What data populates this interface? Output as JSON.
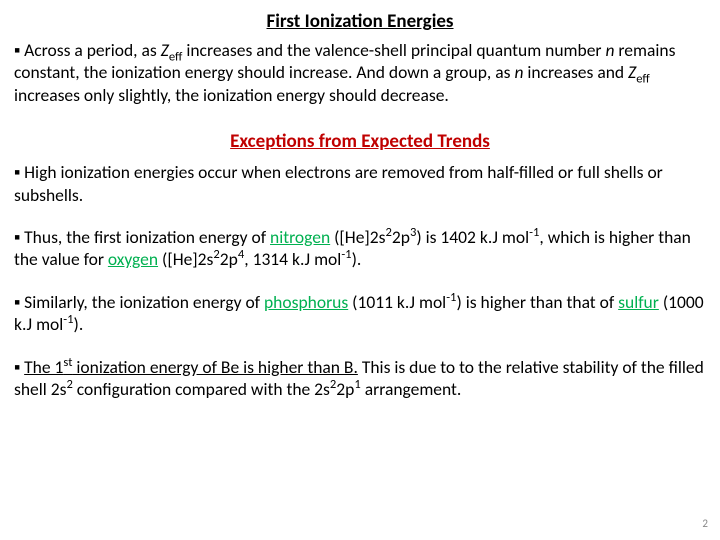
{
  "title": "First Ionization Energies",
  "para1_a": "Across a period, as ",
  "para1_z": "Z",
  "para1_eff": "eff",
  "para1_b": " increases and the valence-shell principal quantum number ",
  "para1_n1": "n",
  "para1_c": " remains constant, the ionization energy should increase. And down a group, as ",
  "para1_n2": "n",
  "para1_d": " increases and ",
  "para1_z2": "Z",
  "para1_eff2": "eff",
  "para1_e": " increases only slightly, the ionization energy should decrease.",
  "subtitle": "Exceptions from Expected Trends",
  "para2": "High ionization energies occur when electrons are removed from half-filled or full shells or subshells.",
  "p3_a": "Thus, the first ionization energy of ",
  "p3_nitrogen": "nitrogen",
  "p3_b": " ([He]2s",
  "p3_c": "2p",
  "p3_d": ") is 1402 k.J mol",
  "p3_e": ", which is higher than the value for ",
  "p3_oxygen": "oxygen",
  "p3_f": " ([He]2s",
  "p3_g": "2p",
  "p3_h": ", 1314 k.J mol",
  "p3_i": ").",
  "p4_a": "Similarly, the ionization energy of ",
  "p4_phos": "phosphorus",
  "p4_b": " (1011 k.J mol",
  "p4_c": ") is higher than that of ",
  "p4_sulf": "sulfur",
  "p4_d": " (1000 k.J mol",
  "p4_e": ").",
  "p5_a": "The 1",
  "p5_st": "st",
  "p5_b": " ionization energy of Be is higher than B.",
  "p5_c": " This is due to to the relative stability of the filled shell 2s",
  "p5_d": " configuration compared with the 2s",
  "p5_e": "2p",
  "p5_f": " arrangement.",
  "sup2": "2",
  "sup3": "3",
  "sup4": "4",
  "sup1": "1",
  "supm1": "-1",
  "bullet": "▪ ",
  "pagenum": "2"
}
